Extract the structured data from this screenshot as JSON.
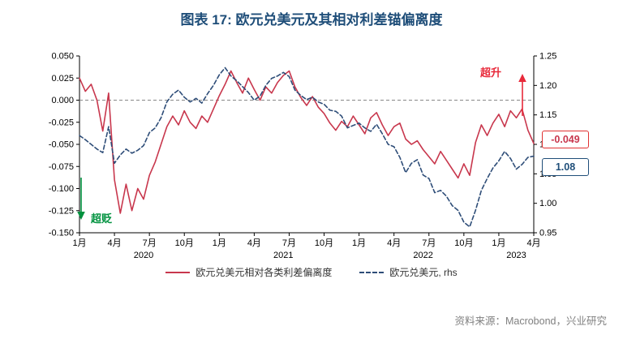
{
  "title": "图表 17: 欧元兑美元及其相对利差锚偏离度",
  "annotations": {
    "overshoot": "超升",
    "undershoot": "超贬"
  },
  "callouts": {
    "deviation": "-0.049",
    "eurusd": "1.08"
  },
  "legend": [
    {
      "label": "欧元兑美元相对各类利差偏离度"
    },
    {
      "label": "欧元兑美元, rhs"
    }
  ],
  "source": "资料来源：Macrobond，兴业研究",
  "colors": {
    "title": "#1f4e79",
    "deviation_line": "#c8374d",
    "eurusd_line": "#2e4d78",
    "overshoot": "#e8293a",
    "undershoot": "#00923f",
    "zero_line": "#888888"
  },
  "chart_data": {
    "type": "line",
    "title": "图表 17: 欧元兑美元及其相对利差锚偏离度",
    "grid": "horizontal dashed line at 0 only",
    "legend_position": "bottom",
    "x_range": [
      0,
      39
    ],
    "x_unit": "months since 2020-01",
    "x_tick_positions": [
      0,
      3,
      6,
      9,
      12,
      15,
      18,
      21,
      24,
      27,
      30,
      33,
      36,
      39
    ],
    "x_tick_labels": [
      "1月",
      "4月",
      "7月",
      "10月",
      "1月",
      "4月",
      "7月",
      "10月",
      "1月",
      "4月",
      "7月",
      "10月",
      "1月",
      "4月"
    ],
    "year_labels": [
      {
        "label": "2020",
        "pos": 5.5
      },
      {
        "label": "2021",
        "pos": 17.5
      },
      {
        "label": "2022",
        "pos": 29.5
      },
      {
        "label": "2023",
        "pos": 37.5
      }
    ],
    "left_axis": {
      "min": -0.15,
      "max": 0.05,
      "ticks": [
        0.05,
        0.025,
        0.0,
        -0.025,
        -0.05,
        -0.075,
        -0.1,
        -0.125,
        -0.15
      ]
    },
    "right_axis": {
      "min": 0.95,
      "max": 1.25,
      "ticks": [
        1.25,
        1.2,
        1.15,
        1.1,
        1.05,
        1.0,
        0.95
      ]
    },
    "zero_line": 0.0,
    "series": [
      {
        "name": "欧元兑美元相对各类利差偏离度",
        "axis": "left",
        "color": "#c8374d",
        "style": "solid",
        "x_start": 0,
        "x_step": 0.5,
        "values": [
          0.025,
          0.01,
          0.018,
          0.0,
          -0.035,
          0.008,
          -0.09,
          -0.128,
          -0.095,
          -0.125,
          -0.1,
          -0.112,
          -0.085,
          -0.07,
          -0.05,
          -0.03,
          -0.018,
          -0.028,
          -0.012,
          -0.025,
          -0.032,
          -0.018,
          -0.025,
          -0.01,
          0.005,
          0.018,
          0.033,
          0.02,
          0.008,
          0.025,
          0.012,
          0.0,
          0.015,
          0.008,
          0.02,
          0.028,
          0.033,
          0.015,
          0.003,
          -0.006,
          0.004,
          -0.008,
          -0.015,
          -0.026,
          -0.034,
          -0.024,
          -0.03,
          -0.018,
          -0.028,
          -0.038,
          -0.02,
          -0.014,
          -0.028,
          -0.04,
          -0.03,
          -0.026,
          -0.044,
          -0.05,
          -0.046,
          -0.056,
          -0.064,
          -0.072,
          -0.058,
          -0.068,
          -0.078,
          -0.088,
          -0.072,
          -0.085,
          -0.048,
          -0.028,
          -0.04,
          -0.026,
          -0.016,
          -0.03,
          -0.012,
          -0.02,
          -0.01,
          -0.034,
          -0.049
        ],
        "last_value": -0.049
      },
      {
        "name": "欧元兑美元, rhs",
        "axis": "right",
        "color": "#2e4d78",
        "style": "dashed",
        "x_start": 0,
        "x_step": 0.5,
        "values": [
          1.115,
          1.108,
          1.1,
          1.092,
          1.086,
          1.13,
          1.068,
          1.082,
          1.092,
          1.085,
          1.09,
          1.098,
          1.12,
          1.128,
          1.145,
          1.172,
          1.185,
          1.192,
          1.18,
          1.172,
          1.178,
          1.17,
          1.186,
          1.2,
          1.218,
          1.23,
          1.216,
          1.208,
          1.198,
          1.188,
          1.175,
          1.182,
          1.2,
          1.212,
          1.216,
          1.222,
          1.215,
          1.192,
          1.183,
          1.176,
          1.18,
          1.172,
          1.168,
          1.158,
          1.156,
          1.148,
          1.128,
          1.132,
          1.136,
          1.128,
          1.122,
          1.134,
          1.118,
          1.1,
          1.096,
          1.078,
          1.052,
          1.068,
          1.074,
          1.048,
          1.042,
          1.018,
          1.022,
          1.012,
          0.996,
          0.988,
          0.968,
          0.96,
          0.988,
          1.022,
          1.042,
          1.06,
          1.072,
          1.088,
          1.076,
          1.058,
          1.066,
          1.078,
          1.08
        ],
        "last_value": 1.08
      }
    ]
  }
}
